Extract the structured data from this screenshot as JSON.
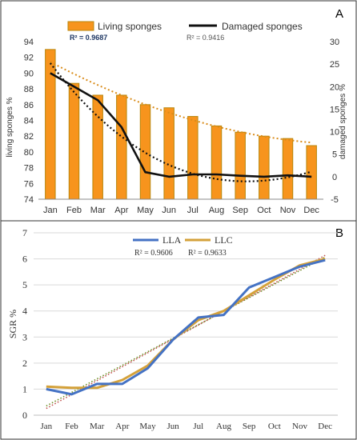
{
  "panels": {
    "a": {
      "label": "A"
    },
    "b": {
      "label": "B"
    }
  },
  "colors": {
    "bar_fill": "#F7941D",
    "bar_stroke": "#B8860B",
    "damaged_line": "#111111",
    "living_trend": "#D98C1A",
    "lla_line": "#4472C4",
    "llc_line": "#D4A13A",
    "lla_trend": "#C0504D",
    "llc_trend": "#6B8E23",
    "grid": "#D9D9D9"
  },
  "chart_data": [
    {
      "type": "bar",
      "panel": "A",
      "categories": [
        "Jan",
        "Feb",
        "Mar",
        "Apr",
        "May",
        "Jun",
        "Jul",
        "Aug",
        "Sep",
        "Oct",
        "Nov",
        "Dec"
      ],
      "series": [
        {
          "name": "Living sponges",
          "type": "bar",
          "axis": "left",
          "values": [
            93,
            88.7,
            87.2,
            87.2,
            86,
            85.6,
            84.5,
            83.3,
            82.5,
            82,
            81.7,
            80.8
          ],
          "trend": "polynomial",
          "r2": "R² = 0.9687"
        },
        {
          "name": "Damaged sponges",
          "type": "line",
          "axis": "right",
          "values": [
            23,
            20,
            17,
            11,
            1,
            0,
            0.5,
            0.5,
            0.2,
            0,
            0.3,
            0
          ],
          "trend": "polynomial",
          "r2": "R² = 0.9416"
        }
      ],
      "ylabel": "living sponges %",
      "y2label": "damaged sponges %",
      "ylim": [
        74,
        94
      ],
      "yticks": [
        74,
        76,
        78,
        80,
        82,
        84,
        86,
        88,
        90,
        92,
        94
      ],
      "y2lim": [
        -5,
        30
      ],
      "y2ticks": [
        -5,
        0,
        5,
        10,
        15,
        20,
        25,
        30
      ],
      "legend": "top",
      "grid": false
    },
    {
      "type": "line",
      "panel": "B",
      "categories": [
        "Jan",
        "Feb",
        "Mar",
        "Apr",
        "May",
        "Jun",
        "Jul",
        "Aug",
        "Sep",
        "Oct",
        "Nov",
        "Dec"
      ],
      "series": [
        {
          "name": "LLA",
          "values": [
            1.0,
            0.8,
            1.2,
            1.2,
            1.8,
            2.9,
            3.75,
            3.85,
            4.9,
            5.3,
            5.7,
            5.95
          ],
          "trend": "linear",
          "r2": "R² = 0.9606"
        },
        {
          "name": "LLC",
          "values": [
            1.1,
            1.05,
            1.05,
            1.35,
            1.9,
            2.9,
            3.65,
            4.0,
            4.6,
            5.2,
            5.75,
            6.0
          ],
          "trend": "linear",
          "r2": "R² = 0.9633"
        }
      ],
      "ylabel": "SGR %",
      "ylim": [
        0,
        7
      ],
      "yticks": [
        0,
        1,
        2,
        3,
        4,
        5,
        6,
        7
      ],
      "legend": "top",
      "grid": true
    }
  ]
}
